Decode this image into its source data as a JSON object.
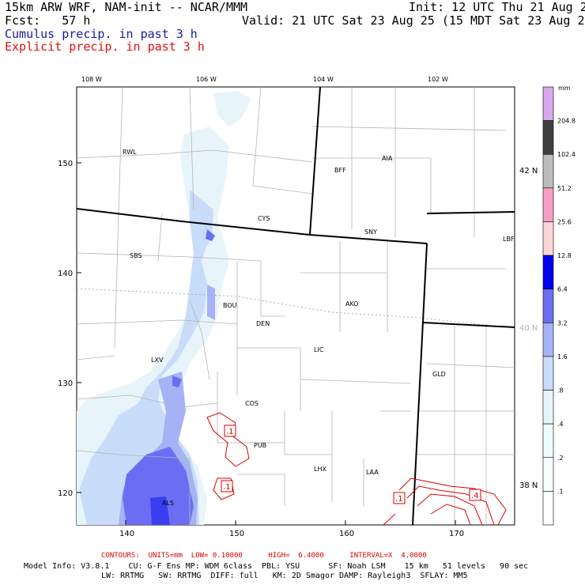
{
  "header": {
    "title_left": "15km ARW WRF, NAM-init -- NCAR/MMM",
    "init": "Init: 12 UTC Thu 21 Aug 25",
    "fcst": "Fcst:   57 h",
    "valid": "Valid: 21 UTC Sat 23 Aug 25 (15 MDT Sat 23 Aug 25)",
    "legend1": "Cumulus precip. in past 3 h",
    "legend2": "Explicit precip. in past 3 h"
  },
  "colors": {
    "cumulus": "#1a1aa6",
    "explicit": "#e01010",
    "contour": "#dd0000",
    "state_border": "#000000",
    "county": "#b4b4b4"
  },
  "map": {
    "lon_labels": [
      "108 W",
      "106 W",
      "104 W",
      "102 W"
    ],
    "lat_labels": [
      "42 N",
      "40 N",
      "38 N"
    ],
    "x_ticks": [
      "140",
      "150",
      "160",
      "170"
    ],
    "y_ticks": [
      "150",
      "140",
      "130",
      "120"
    ],
    "stations": [
      "RWL",
      "BFF",
      "AIA",
      "CYS",
      "SNY",
      "LBF",
      "SBS",
      "BOU",
      "AKO",
      "DEN",
      "LXV",
      "LIC",
      "GLD",
      "COS",
      "PUB",
      "LHX",
      "LAA",
      "ALS"
    ],
    "contour_labels": [
      ".1",
      ".1",
      ".1",
      ".4"
    ]
  },
  "colorbar": {
    "unit": "mm",
    "labels": [
      "204.8",
      "102.4",
      "51.2",
      "25.6",
      "12.8",
      "6.4",
      "3.2",
      "1.6",
      ".8",
      ".4",
      ".2",
      ".1"
    ],
    "colors": [
      "#d7a9ee",
      "#404040",
      "#bcbcbc",
      "#f7a0c6",
      "#fad7d7",
      "#0000f0",
      "#6b6ef3",
      "#a5b3f6",
      "#c9dcfa",
      "#e7f5fb",
      "#eefcfc",
      "#f9fffe",
      "#ffffff"
    ]
  },
  "footer": {
    "contours": "CONTOURS:  UNITS=mm  LOW= 0.10000      HIGH=  6.4000      INTERVAL=X  4.0000",
    "model1": "Model Info: V3.8.1    CU: G-F Ens MP: WDM 6class  PBL: YSU      SF: Noah LSM    15 km   51 levels   90 sec",
    "model2": "LW: RRTMG   SW: RRTMG  DIFF: full   KM: 2D Smagor DAMP: Rayleigh3  SFLAY: MM5"
  }
}
